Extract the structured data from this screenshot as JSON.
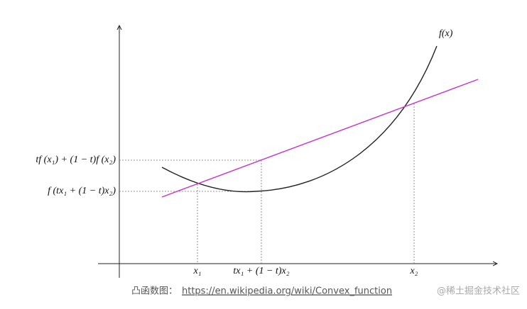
{
  "labels": {
    "curve": "f(x)",
    "y_upper": "tf (x₁) + (1 − t)f (x₂)",
    "y_lower": "f (tx₁ + (1 − t)x₂)",
    "x_left": "x₁",
    "x_mid": "tx₁ + (1 − t)x₂",
    "x_right": "x₂"
  },
  "caption": {
    "prefix": "凸函数图：",
    "url": "https://en.wikipedia.org/wiki/Convex_function"
  },
  "watermark": "@稀土掘金技术社区"
}
